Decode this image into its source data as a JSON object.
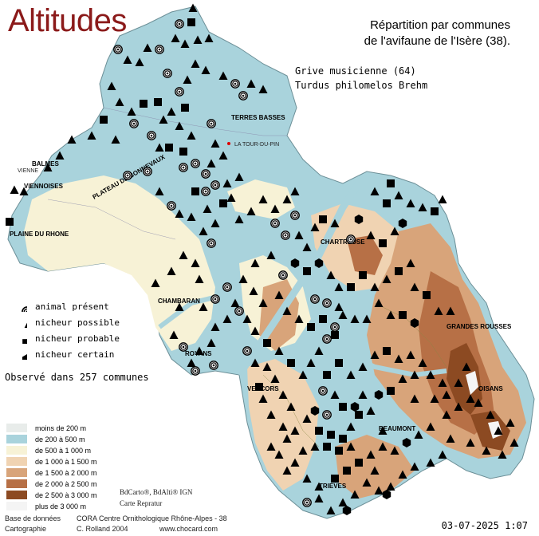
{
  "header": {
    "title": "Altitudes",
    "subtitle_line1": "Répartition par communes",
    "subtitle_line2": "de l'avifaune de l'Isère (38)."
  },
  "species": {
    "common_name": "Grive musicienne  (64)",
    "latin_name": "Turdus philomelos Brehm"
  },
  "observation_summary": "Observé dans 257 communes",
  "legend": [
    {
      "symbol": "circle-target",
      "label": "animal présent"
    },
    {
      "symbol": "triangle",
      "label": "nicheur possible"
    },
    {
      "symbol": "square",
      "label": "nicheur probable"
    },
    {
      "symbol": "hexagon",
      "label": "nicheur certain"
    }
  ],
  "altitude_legend": [
    {
      "label": "moins de 200 m",
      "color": "#e8ecea"
    },
    {
      "label": "de 200 à 500 m",
      "color": "#a9d3dc"
    },
    {
      "label": "de 500 à 1 000 m",
      "color": "#f7f2d6"
    },
    {
      "label": "de 1 000 à 1 500 m",
      "color": "#f0d3b2"
    },
    {
      "label": "de 1 500 à 2 000 m",
      "color": "#d8a47a"
    },
    {
      "label": "de 2 000 à 2 500 m",
      "color": "#b77046"
    },
    {
      "label": "de 2 500 à 3 000 m",
      "color": "#8c4a22"
    },
    {
      "label": "plus de 3 000 m",
      "color": "#f4f4f4"
    }
  ],
  "map_sources": {
    "line1": "BdCarto®, BdAlti® IGN",
    "line2": "Carte Repratur"
  },
  "credits": {
    "database_label": "Base de données",
    "database_value": "CORA Centre Ornithologique Rhône-Alpes - 38",
    "cartography_label": "Cartographie",
    "cartography_value": "C. Rolland 2004",
    "website": "www.chocard.com"
  },
  "date": "03-07-2025 1:07",
  "place_labels": {
    "vienne": "VIENNE",
    "la_tour_du_pin": "LA TOUR-DU-PIN",
    "balmes": "BALMES",
    "viennoises": "VIENNOISES",
    "plaine_du_rhone": "PLAINE DU RHONE",
    "chambaran": "CHAMBARAN",
    "royans": "ROYANS",
    "vercors": "VERCORS",
    "chartreuse": "CHARTREUSE",
    "grandes_rousses": "GRANDES ROUSSES",
    "oisans": "OISANS",
    "beaumont": "BEAUMONT",
    "trieves": "TRIEVES",
    "terres_basses": "TERRES BASSES",
    "plateau_bonnevaux": "PLATEAU DE BONNEVAUX"
  },
  "colors": {
    "title": "#8b1a1a",
    "low_plain": "#a9d3dc",
    "mid": "#f7f2d6",
    "mountain": "#d8a47a",
    "high": "#8c4a22"
  }
}
